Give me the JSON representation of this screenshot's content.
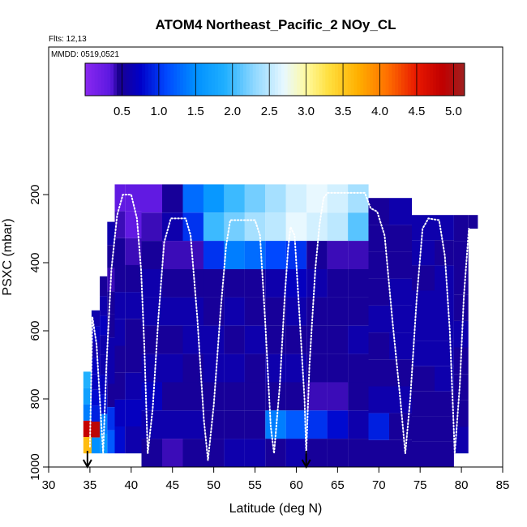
{
  "chart_data": {
    "type": "heatmap",
    "title": "ATOM4 Northeast_Pacific_2 NOy_CL",
    "flights_label": "Flts: 12,13",
    "dates_label": "MMDD: 0519,0521",
    "xlabel": "Latitude (deg N)",
    "ylabel": "PSXC (mbar)",
    "xlim": [
      30,
      85
    ],
    "ylim": [
      1000,
      0
    ],
    "x_ticks": [
      "30",
      "35",
      "40",
      "45",
      "50",
      "55",
      "60",
      "65",
      "70",
      "75",
      "80",
      "85"
    ],
    "y_ticks": [
      "200",
      "400",
      "600",
      "800",
      "1000"
    ],
    "colorbar": {
      "range": [
        0.0,
        5.15
      ],
      "tick_labels": [
        "0.5",
        "1.0",
        "1.5",
        "2.0",
        "2.5",
        "3.0",
        "3.5",
        "4.0",
        "4.5",
        "5.0"
      ]
    },
    "arrows_lat": [
      34.7,
      61.2
    ],
    "grid": false,
    "columns": [
      {
        "lat": 34.7,
        "pmin": 720,
        "pmax": 960,
        "vals": [
          1.9,
          1.7,
          1.4,
          4.8,
          3.6
        ]
      },
      {
        "lat": 35.7,
        "pmin": 540,
        "pmax": 960,
        "vals": [
          0.6,
          0.7,
          0.6,
          0.7,
          0.7,
          0.8,
          0.9,
          4.9,
          1.5
        ]
      },
      {
        "lat": 36.7,
        "pmin": 440,
        "pmax": 960,
        "vals": [
          0.5,
          0.6,
          0.7,
          0.6,
          0.6,
          0.7,
          0.8,
          1.4,
          1.6
        ]
      },
      {
        "lat": 37.5,
        "pmin": 280,
        "pmax": 960,
        "vals": [
          0.6,
          0.5,
          0.4,
          0.5,
          0.5,
          0.6,
          0.6,
          0.5,
          1.0,
          1.2
        ]
      },
      {
        "lat": 38.5,
        "pmin": 170,
        "pmax": 960,
        "vals": [
          0.3,
          0.4,
          0.5,
          0.5,
          0.6,
          0.6,
          0.5,
          0.5,
          0.7,
          0.8
        ]
      },
      {
        "lat": 40.0,
        "pmin": 170,
        "pmax": 960,
        "vals": [
          0.3,
          0.3,
          0.4,
          0.5,
          0.6,
          0.5,
          0.5,
          0.6,
          0.7,
          0.6
        ]
      },
      {
        "lat": 42.5,
        "pmin": 170,
        "pmax": 1000,
        "vals": [
          0.3,
          0.4,
          0.5,
          0.6,
          0.6,
          0.5,
          0.6,
          0.7,
          0.6,
          0.5
        ]
      },
      {
        "lat": 45.0,
        "pmin": 170,
        "pmax": 1000,
        "vals": [
          0.5,
          0.6,
          0.4,
          0.5,
          0.6,
          0.5,
          0.6,
          0.5,
          0.6,
          0.4
        ]
      },
      {
        "lat": 47.5,
        "pmin": 170,
        "pmax": 1000,
        "vals": [
          1.3,
          1.0,
          0.4,
          0.5,
          0.6,
          0.6,
          0.5,
          0.5,
          0.6,
          0.5
        ]
      },
      {
        "lat": 50.0,
        "pmin": 170,
        "pmax": 1000,
        "vals": [
          1.6,
          2.0,
          1.0,
          0.5,
          0.5,
          0.6,
          0.6,
          0.5,
          0.5,
          0.5
        ]
      },
      {
        "lat": 52.5,
        "pmin": 170,
        "pmax": 1000,
        "vals": [
          2.0,
          2.2,
          1.4,
          0.5,
          0.6,
          0.5,
          0.6,
          0.5,
          0.5,
          0.6
        ]
      },
      {
        "lat": 55.0,
        "pmin": 170,
        "pmax": 1000,
        "vals": [
          2.2,
          2.4,
          1.3,
          0.5,
          0.5,
          0.6,
          0.5,
          0.5,
          0.5,
          0.6
        ]
      },
      {
        "lat": 57.5,
        "pmin": 170,
        "pmax": 1000,
        "vals": [
          2.4,
          2.5,
          1.1,
          0.6,
          0.5,
          0.5,
          0.6,
          0.5,
          1.4,
          0.5
        ]
      },
      {
        "lat": 60.0,
        "pmin": 170,
        "pmax": 1000,
        "vals": [
          2.6,
          2.7,
          1.0,
          0.7,
          0.6,
          0.5,
          0.6,
          0.5,
          1.2,
          0.6
        ]
      },
      {
        "lat": 62.5,
        "pmin": 170,
        "pmax": 1000,
        "vals": [
          2.7,
          2.6,
          0.5,
          0.6,
          0.5,
          0.5,
          0.5,
          0.4,
          1.0,
          0.5
        ]
      },
      {
        "lat": 65.0,
        "pmin": 170,
        "pmax": 1000,
        "vals": [
          2.6,
          2.5,
          0.4,
          0.5,
          0.5,
          0.5,
          0.5,
          0.4,
          0.8,
          0.5
        ]
      },
      {
        "lat": 67.5,
        "pmin": 170,
        "pmax": 1000,
        "vals": [
          2.4,
          2.1,
          0.4,
          0.5,
          0.5,
          0.6,
          0.5,
          0.5,
          0.6,
          0.5
        ]
      },
      {
        "lat": 70.0,
        "pmin": 210,
        "pmax": 1000,
        "vals": [
          0.5,
          0.5,
          0.5,
          0.5,
          0.6,
          0.5,
          0.5,
          0.6,
          0.9,
          0.5
        ]
      },
      {
        "lat": 72.5,
        "pmin": 210,
        "pmax": 1000,
        "vals": [
          0.6,
          0.5,
          0.5,
          0.6,
          0.6,
          0.6,
          0.5,
          0.6,
          0.5,
          0.5
        ]
      },
      {
        "lat": 75.5,
        "pmin": 260,
        "pmax": 1000,
        "vals": [
          0.6,
          0.6,
          0.5,
          0.6,
          0.6,
          0.6,
          0.5,
          0.5,
          0.5,
          0.5
        ]
      },
      {
        "lat": 78.0,
        "pmin": 260,
        "pmax": 1000,
        "vals": [
          0.6,
          0.5,
          0.6,
          0.6,
          0.6,
          0.6,
          0.6,
          0.5,
          0.5,
          0.5
        ]
      },
      {
        "lat": 80.2,
        "pmin": 260,
        "pmax": 960,
        "vals": [
          0.5,
          0.5,
          0.5,
          0.5,
          0.6,
          0.5,
          0.5,
          0.5,
          0.6
        ]
      },
      {
        "lat": 81.5,
        "pmin": 260,
        "pmax": 300,
        "vals": [
          0.5
        ]
      }
    ],
    "flight_track": [
      [
        35.0,
        940
      ],
      [
        35.3,
        560
      ],
      [
        35.8,
        640
      ],
      [
        36.2,
        800
      ],
      [
        36.6,
        960
      ],
      [
        37.0,
        700
      ],
      [
        37.6,
        420
      ],
      [
        38.3,
        260
      ],
      [
        39.0,
        200
      ],
      [
        40.0,
        200
      ],
      [
        40.7,
        270
      ],
      [
        41.2,
        420
      ],
      [
        41.6,
        650
      ],
      [
        42.0,
        960
      ],
      [
        42.6,
        830
      ],
      [
        43.3,
        560
      ],
      [
        44.0,
        340
      ],
      [
        44.8,
        270
      ],
      [
        46.6,
        270
      ],
      [
        47.2,
        320
      ],
      [
        48.0,
        560
      ],
      [
        48.8,
        860
      ],
      [
        49.3,
        980
      ],
      [
        50.0,
        820
      ],
      [
        50.8,
        550
      ],
      [
        51.5,
        350
      ],
      [
        52.0,
        275
      ],
      [
        55.0,
        275
      ],
      [
        55.6,
        320
      ],
      [
        56.2,
        560
      ],
      [
        56.9,
        880
      ],
      [
        57.3,
        960
      ],
      [
        58.0,
        760
      ],
      [
        58.6,
        500
      ],
      [
        59.0,
        360
      ],
      [
        59.3,
        295
      ],
      [
        59.8,
        320
      ],
      [
        60.3,
        520
      ],
      [
        61.0,
        800
      ],
      [
        61.2,
        960
      ],
      [
        61.6,
        700
      ],
      [
        62.3,
        420
      ],
      [
        62.8,
        290
      ],
      [
        63.3,
        210
      ],
      [
        63.8,
        195
      ],
      [
        68.3,
        195
      ],
      [
        69.0,
        240
      ],
      [
        69.8,
        250
      ],
      [
        70.7,
        320
      ],
      [
        71.6,
        560
      ],
      [
        72.6,
        800
      ],
      [
        73.2,
        960
      ],
      [
        73.8,
        800
      ],
      [
        74.6,
        500
      ],
      [
        75.3,
        300
      ],
      [
        76.0,
        270
      ],
      [
        77.3,
        275
      ],
      [
        78.0,
        380
      ],
      [
        78.6,
        600
      ],
      [
        79.2,
        960
      ],
      [
        79.8,
        760
      ],
      [
        80.3,
        500
      ],
      [
        80.9,
        300
      ]
    ]
  }
}
